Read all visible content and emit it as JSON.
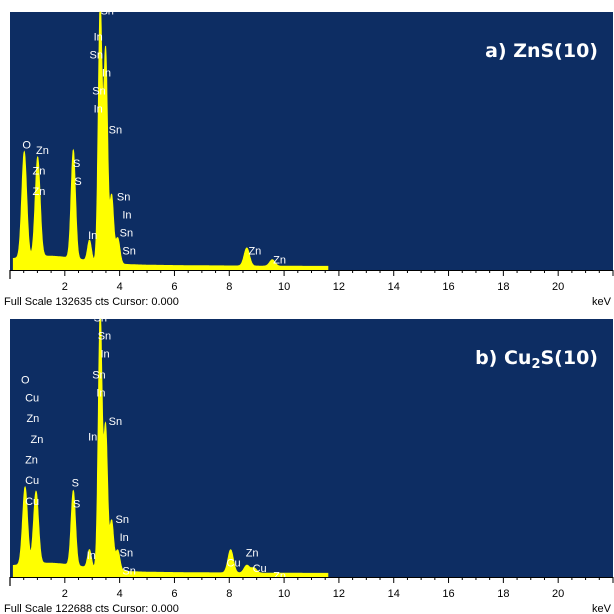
{
  "chart_data": [
    {
      "type": "line",
      "title": "a) ZnS(10)",
      "xlabel": "keV",
      "xlim": [
        0,
        22
      ],
      "x_ticks": [
        "2",
        "4",
        "6",
        "8",
        "10",
        "12",
        "14",
        "16",
        "18",
        "20"
      ],
      "status_text": "Full Scale 132635 cts Cursor: 0.000",
      "full_scale_counts": 132635,
      "plot_color": "#ffff00",
      "background_color": "#0d2d63",
      "peaks": [
        {
          "x": 0.52,
          "y": 0.41,
          "w": 0.09
        },
        {
          "x": 1.01,
          "y": 0.385,
          "w": 0.09
        },
        {
          "x": 2.31,
          "y": 0.42,
          "w": 0.08
        },
        {
          "x": 2.9,
          "y": 0.08,
          "w": 0.07
        },
        {
          "x": 3.29,
          "y": 1.0,
          "w": 0.07
        },
        {
          "x": 3.49,
          "y": 0.82,
          "w": 0.07
        },
        {
          "x": 3.71,
          "y": 0.26,
          "w": 0.07
        },
        {
          "x": 3.93,
          "y": 0.1,
          "w": 0.08
        },
        {
          "x": 8.64,
          "y": 0.07,
          "w": 0.1
        },
        {
          "x": 9.57,
          "y": 0.025,
          "w": 0.1
        }
      ],
      "annotations": [
        {
          "text": "Sn",
          "x": 3.3,
          "y": 0.99
        },
        {
          "text": "In",
          "x": 3.05,
          "y": 0.89
        },
        {
          "text": "Sn",
          "x": 2.9,
          "y": 0.82
        },
        {
          "text": "In",
          "x": 3.35,
          "y": 0.75
        },
        {
          "text": "Sn",
          "x": 3.0,
          "y": 0.68
        },
        {
          "text": "In",
          "x": 3.05,
          "y": 0.61
        },
        {
          "text": "Sn",
          "x": 3.6,
          "y": 0.53
        },
        {
          "text": "O",
          "x": 0.45,
          "y": 0.47
        },
        {
          "text": "Zn",
          "x": 0.95,
          "y": 0.45
        },
        {
          "text": "Zn",
          "x": 0.82,
          "y": 0.37
        },
        {
          "text": "Zn",
          "x": 0.82,
          "y": 0.29
        },
        {
          "text": "S",
          "x": 2.3,
          "y": 0.4
        },
        {
          "text": "S",
          "x": 2.35,
          "y": 0.33
        },
        {
          "text": "Sn",
          "x": 3.9,
          "y": 0.27
        },
        {
          "text": "In",
          "x": 4.1,
          "y": 0.2
        },
        {
          "text": "In",
          "x": 2.85,
          "y": 0.12
        },
        {
          "text": "Sn",
          "x": 4.0,
          "y": 0.13
        },
        {
          "text": "Sn",
          "x": 4.1,
          "y": 0.06
        },
        {
          "text": "Zn",
          "x": 8.7,
          "y": 0.06
        },
        {
          "text": "Zn",
          "x": 9.6,
          "y": 0.025
        }
      ]
    },
    {
      "type": "line",
      "title_main": "b) Cu",
      "title_sub": "2",
      "title_tail": "S(10)",
      "xlabel": "keV",
      "xlim": [
        0,
        22
      ],
      "x_ticks": [
        "2",
        "4",
        "6",
        "8",
        "10",
        "12",
        "14",
        "16",
        "18",
        "20"
      ],
      "status_text": "Full Scale 122688 cts Cursor: 0.000",
      "full_scale_counts": 122688,
      "plot_color": "#ffff00",
      "background_color": "#0d2d63",
      "peaks": [
        {
          "x": 0.55,
          "y": 0.3,
          "w": 0.09
        },
        {
          "x": 0.95,
          "y": 0.28,
          "w": 0.09
        },
        {
          "x": 2.31,
          "y": 0.29,
          "w": 0.08
        },
        {
          "x": 2.9,
          "y": 0.07,
          "w": 0.07
        },
        {
          "x": 3.29,
          "y": 1.0,
          "w": 0.07
        },
        {
          "x": 3.49,
          "y": 0.55,
          "w": 0.07
        },
        {
          "x": 3.71,
          "y": 0.19,
          "w": 0.07
        },
        {
          "x": 3.93,
          "y": 0.08,
          "w": 0.08
        },
        {
          "x": 8.05,
          "y": 0.09,
          "w": 0.1
        },
        {
          "x": 8.64,
          "y": 0.03,
          "w": 0.1
        },
        {
          "x": 8.9,
          "y": 0.02,
          "w": 0.1
        }
      ],
      "annotations": [
        {
          "text": "Sn",
          "x": 3.05,
          "y": 0.99
        },
        {
          "text": "Sn",
          "x": 3.2,
          "y": 0.92
        },
        {
          "text": "In",
          "x": 3.3,
          "y": 0.85
        },
        {
          "text": "Sn",
          "x": 3.0,
          "y": 0.77
        },
        {
          "text": "In",
          "x": 3.15,
          "y": 0.7
        },
        {
          "text": "In",
          "x": 2.85,
          "y": 0.53
        },
        {
          "text": "Sn",
          "x": 3.6,
          "y": 0.59
        },
        {
          "text": "O",
          "x": 0.4,
          "y": 0.75
        },
        {
          "text": "Cu",
          "x": 0.55,
          "y": 0.68
        },
        {
          "text": "Zn",
          "x": 0.6,
          "y": 0.6
        },
        {
          "text": "Zn",
          "x": 0.75,
          "y": 0.52
        },
        {
          "text": "Zn",
          "x": 0.55,
          "y": 0.44
        },
        {
          "text": "Cu",
          "x": 0.55,
          "y": 0.36
        },
        {
          "text": "Cu",
          "x": 0.55,
          "y": 0.28
        },
        {
          "text": "S",
          "x": 2.25,
          "y": 0.35
        },
        {
          "text": "S",
          "x": 2.3,
          "y": 0.27
        },
        {
          "text": "Sn",
          "x": 3.85,
          "y": 0.21
        },
        {
          "text": "In",
          "x": 4.0,
          "y": 0.14
        },
        {
          "text": "Sn",
          "x": 4.0,
          "y": 0.08
        },
        {
          "text": "In",
          "x": 2.8,
          "y": 0.07
        },
        {
          "text": "Sn",
          "x": 4.1,
          "y": 0.01
        },
        {
          "text": "Zn",
          "x": 8.6,
          "y": 0.08
        },
        {
          "text": "Cu",
          "x": 7.9,
          "y": 0.04
        },
        {
          "text": "Cu",
          "x": 8.85,
          "y": 0.02
        },
        {
          "text": "Zn",
          "x": 9.6,
          "y": -0.01
        }
      ]
    }
  ]
}
